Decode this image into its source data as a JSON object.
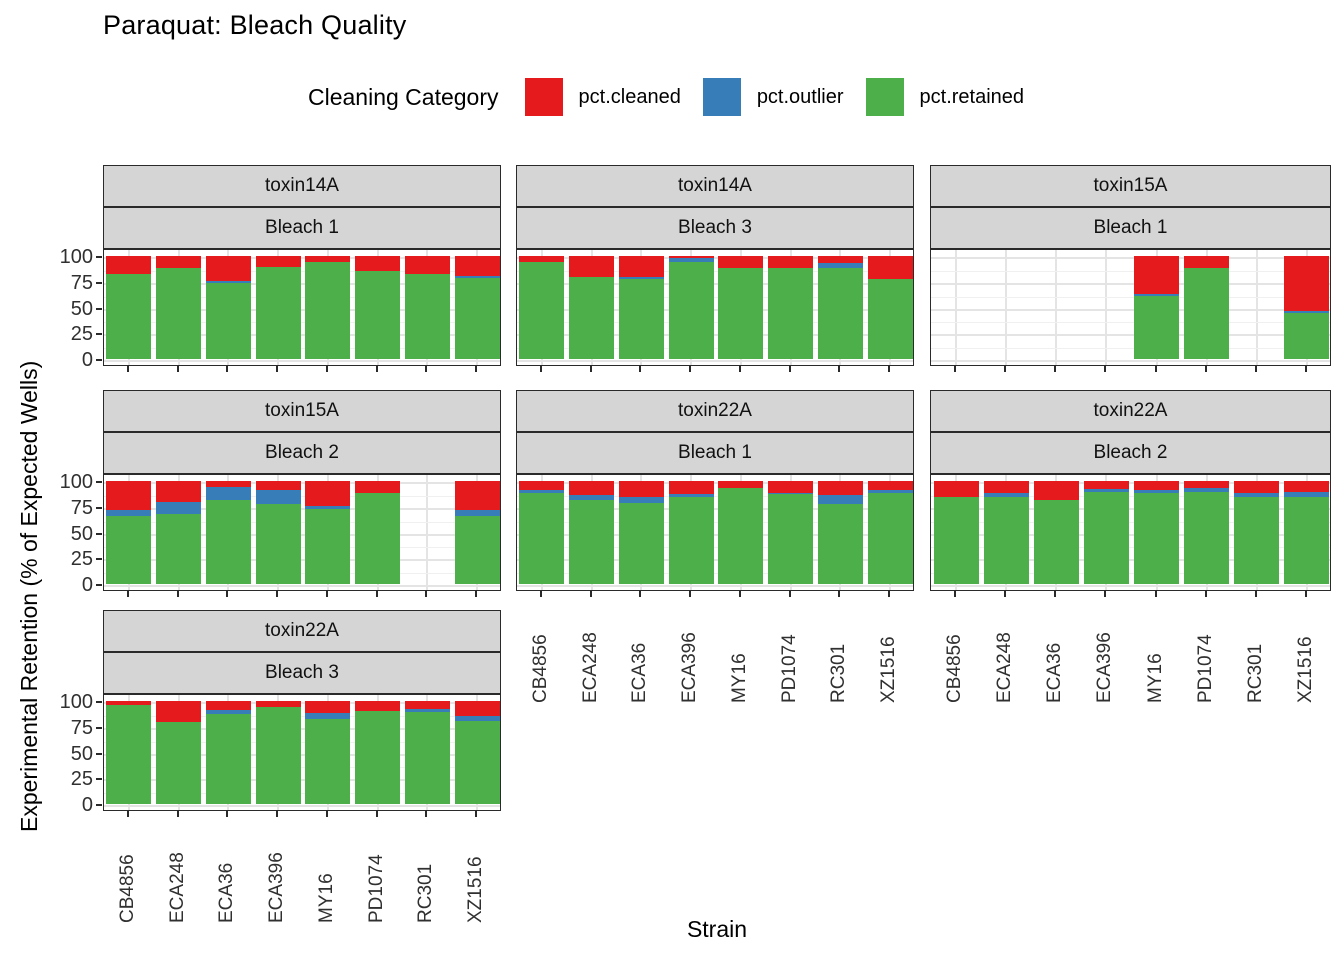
{
  "title": "Paraquat: Bleach Quality",
  "legend": {
    "title": "Cleaning Category",
    "items": [
      {
        "label": "pct.cleaned",
        "color": "#E41A1C"
      },
      {
        "label": "pct.outlier",
        "color": "#377EB8"
      },
      {
        "label": "pct.retained",
        "color": "#4DAF4A"
      }
    ]
  },
  "axes": {
    "y_title": "Experimental Retention (% of Expected Wells)",
    "x_title": "Strain",
    "y_ticks": [
      100,
      75,
      50,
      25,
      0
    ]
  },
  "chart_data": {
    "type": "bar",
    "stacked": true,
    "ylim": [
      0,
      100
    ],
    "grid": "on",
    "y_major_gridlines": [
      0,
      25,
      50,
      75,
      100
    ],
    "y_minor_gridlines": [
      12.5,
      37.5,
      62.5,
      87.5
    ],
    "categories": [
      "CB4856",
      "ECA248",
      "ECA36",
      "ECA396",
      "MY16",
      "PD1074",
      "RC301",
      "XZ1516"
    ],
    "series_names": [
      "pct.cleaned",
      "pct.outlier",
      "pct.retained"
    ],
    "colors": {
      "pct.cleaned": "#E41A1C",
      "pct.outlier": "#377EB8",
      "pct.retained": "#4DAF4A"
    },
    "facet_grid": {
      "rows": 3,
      "cols": 3
    },
    "facets": [
      {
        "toxin": "toxin14A",
        "bleach": "Bleach 1",
        "row": 0,
        "col": 0,
        "show_x_labels": false,
        "values": {
          "pct.retained": [
            83,
            88,
            74,
            89,
            94,
            85,
            83,
            79
          ],
          "pct.outlier": [
            0,
            0,
            2,
            0,
            0,
            0,
            0,
            2
          ],
          "pct.cleaned": [
            17,
            12,
            24,
            11,
            6,
            15,
            17,
            19
          ]
        }
      },
      {
        "toxin": "toxin14A",
        "bleach": "Bleach 3",
        "row": 0,
        "col": 1,
        "show_x_labels": false,
        "values": {
          "pct.retained": [
            94,
            80,
            78,
            94,
            88,
            88,
            88,
            78
          ],
          "pct.outlier": [
            0,
            0,
            2,
            4,
            0,
            0,
            5,
            0
          ],
          "pct.cleaned": [
            6,
            20,
            20,
            2,
            12,
            12,
            7,
            22
          ]
        }
      },
      {
        "toxin": "toxin15A",
        "bleach": "Bleach 1",
        "row": 0,
        "col": 2,
        "show_x_labels": false,
        "values": {
          "pct.retained": [
            null,
            null,
            null,
            null,
            61,
            88,
            null,
            45
          ],
          "pct.outlier": [
            null,
            null,
            null,
            null,
            2,
            0,
            null,
            2
          ],
          "pct.cleaned": [
            null,
            null,
            null,
            null,
            37,
            12,
            null,
            53
          ]
        }
      },
      {
        "toxin": "toxin15A",
        "bleach": "Bleach 2",
        "row": 1,
        "col": 0,
        "show_x_labels": false,
        "values": {
          "pct.retained": [
            66,
            68,
            82,
            78,
            73,
            88,
            null,
            66
          ],
          "pct.outlier": [
            6,
            12,
            12,
            13,
            3,
            0,
            null,
            6
          ],
          "pct.cleaned": [
            28,
            20,
            6,
            9,
            24,
            12,
            null,
            28
          ]
        }
      },
      {
        "toxin": "toxin22A",
        "bleach": "Bleach 1",
        "row": 1,
        "col": 1,
        "show_x_labels": true,
        "values": {
          "pct.retained": [
            88,
            82,
            79,
            84,
            93,
            87,
            78,
            88
          ],
          "pct.outlier": [
            3,
            4,
            5,
            3,
            0,
            1,
            8,
            3
          ],
          "pct.cleaned": [
            9,
            14,
            16,
            13,
            7,
            12,
            14,
            9
          ]
        }
      },
      {
        "toxin": "toxin22A",
        "bleach": "Bleach 2",
        "row": 1,
        "col": 2,
        "show_x_labels": true,
        "values": {
          "pct.retained": [
            84,
            84,
            82,
            89,
            88,
            89,
            84,
            84
          ],
          "pct.outlier": [
            0,
            4,
            0,
            3,
            3,
            4,
            4,
            5
          ],
          "pct.cleaned": [
            16,
            12,
            18,
            8,
            9,
            7,
            12,
            11
          ]
        }
      },
      {
        "toxin": "toxin22A",
        "bleach": "Bleach 3",
        "row": 2,
        "col": 0,
        "show_x_labels": true,
        "values": {
          "pct.retained": [
            96,
            80,
            87,
            94,
            83,
            90,
            89,
            81
          ],
          "pct.outlier": [
            0,
            0,
            4,
            0,
            5,
            0,
            3,
            4
          ],
          "pct.cleaned": [
            4,
            20,
            9,
            6,
            12,
            10,
            8,
            15
          ]
        }
      }
    ]
  }
}
